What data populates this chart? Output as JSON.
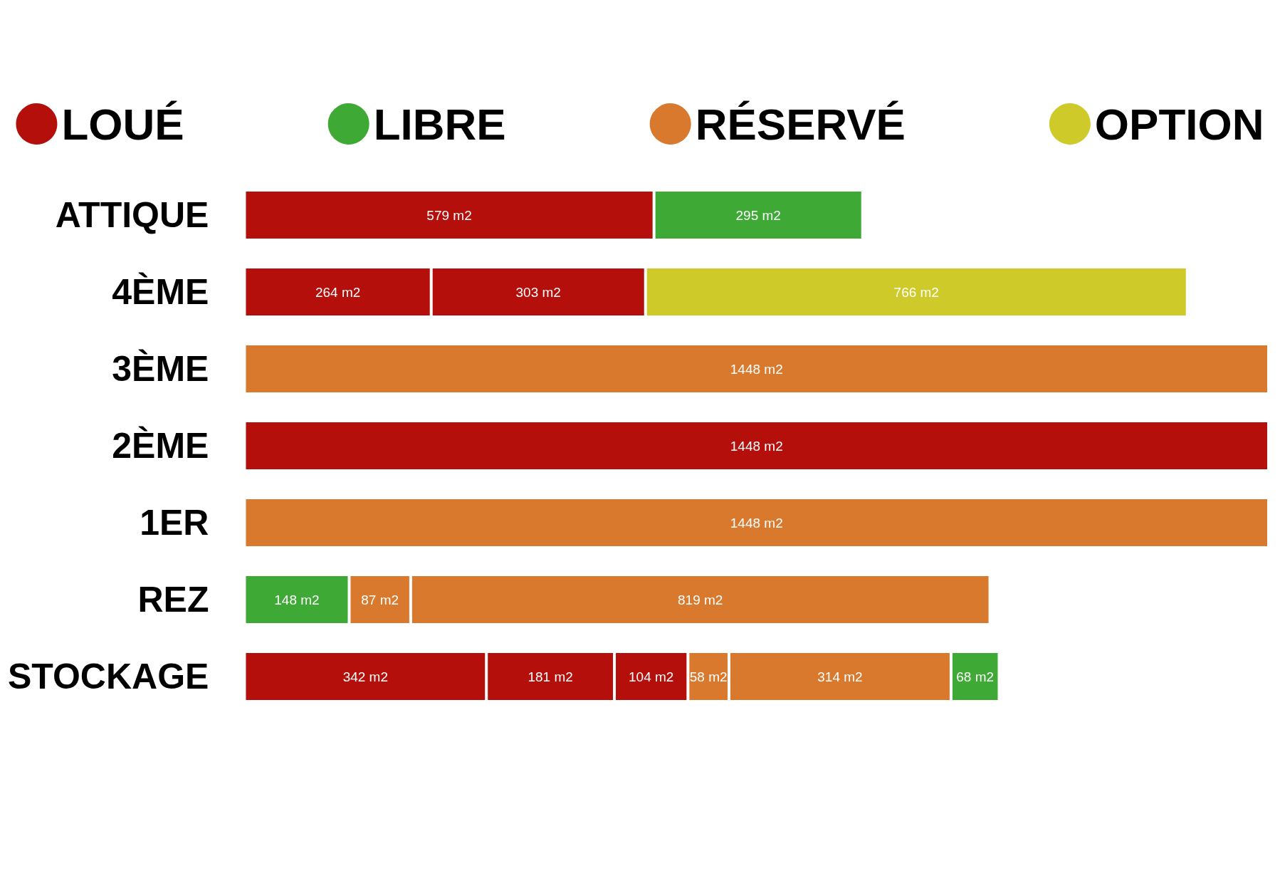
{
  "chart_data": {
    "type": "bar",
    "orientation": "horizontal",
    "stacked": true,
    "legend": "top",
    "tick_labels": "y",
    "categories": [
      "ATTIQUE",
      "4ÈME",
      "3ÈME",
      "2ÈME",
      "1ER",
      "REZ",
      "STOCKAGE"
    ],
    "series": [
      {
        "name": "LOUÉ",
        "color": "#b40f0a",
        "values": [
          579,
          264,
          null,
          1448,
          null,
          null,
          342
        ],
        "value_labels": [
          "579 m2",
          "264 m2",
          null,
          "1448 m2",
          null,
          null,
          "342 m2"
        ]
      },
      {
        "color": "#b40f0a",
        "values": [
          null,
          303,
          null,
          null,
          null,
          null,
          181
        ],
        "value_labels": [
          null,
          "303 m2",
          null,
          null,
          null,
          null,
          "181 m2"
        ]
      },
      {
        "color": "#b40f0a",
        "values": [
          null,
          null,
          null,
          null,
          null,
          null,
          104
        ],
        "value_labels": [
          null,
          null,
          null,
          null,
          null,
          null,
          "104 m2"
        ]
      },
      {
        "name": "LIBRE",
        "color": "#3ea935",
        "values": [
          null,
          null,
          null,
          null,
          null,
          148,
          null
        ],
        "value_labels": [
          null,
          null,
          null,
          null,
          null,
          "148 m2",
          null
        ]
      },
      {
        "name": "RÉSERVÉ",
        "color": "#d8792e",
        "values": [
          null,
          null,
          1448,
          null,
          1448,
          87,
          58
        ],
        "value_labels": [
          null,
          null,
          "1448 m2",
          null,
          "1448 m2",
          "87 m2",
          "58 m2"
        ]
      },
      {
        "color": "#d8792e",
        "values": [
          null,
          null,
          null,
          null,
          null,
          819,
          314
        ],
        "value_labels": [
          null,
          null,
          null,
          null,
          null,
          "819 m2",
          "314 m2"
        ]
      },
      {
        "color": "#3ea935",
        "values": [
          295,
          null,
          null,
          null,
          null,
          null,
          68
        ],
        "value_labels": [
          "295 m2",
          null,
          null,
          null,
          null,
          null,
          "68 m2"
        ]
      },
      {
        "name": "OPTION",
        "color": "#cdca2a",
        "values": [
          null,
          766,
          null,
          null,
          null,
          null,
          null
        ],
        "value_labels": [
          null,
          "766 m2",
          null,
          null,
          null,
          null,
          null
        ]
      }
    ]
  }
}
